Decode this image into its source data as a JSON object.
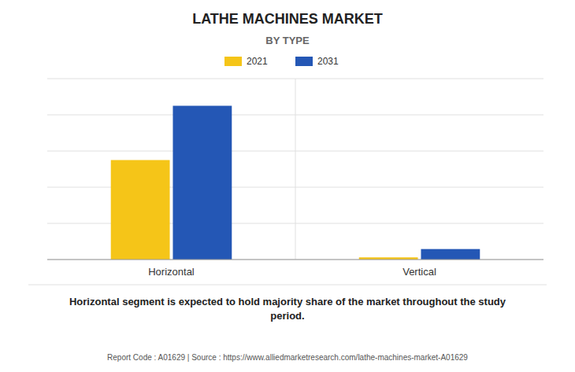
{
  "chart_data": {
    "type": "bar",
    "title": "LATHE MACHINES MARKET",
    "subtitle": "BY TYPE",
    "categories": [
      "Horizontal",
      "Vertical"
    ],
    "series": [
      {
        "name": "2021",
        "color": "#F5C518",
        "values": [
          5.5,
          0.12
        ]
      },
      {
        "name": "2031",
        "color": "#2457B5",
        "values": [
          8.5,
          0.58
        ]
      }
    ],
    "ylim": [
      0,
      10
    ],
    "yticks": [
      0,
      2,
      4,
      6,
      8,
      10
    ],
    "grid": true,
    "tick_labels": "x",
    "legend": "top",
    "annotations": [
      "Horizontal segment is expected to hold majority share of the market throughout the study\nperiod.",
      "Report Code : A01629  |  Source : https://www.alliedmarketresearch.com/lathe-machines-market-A01629"
    ]
  }
}
